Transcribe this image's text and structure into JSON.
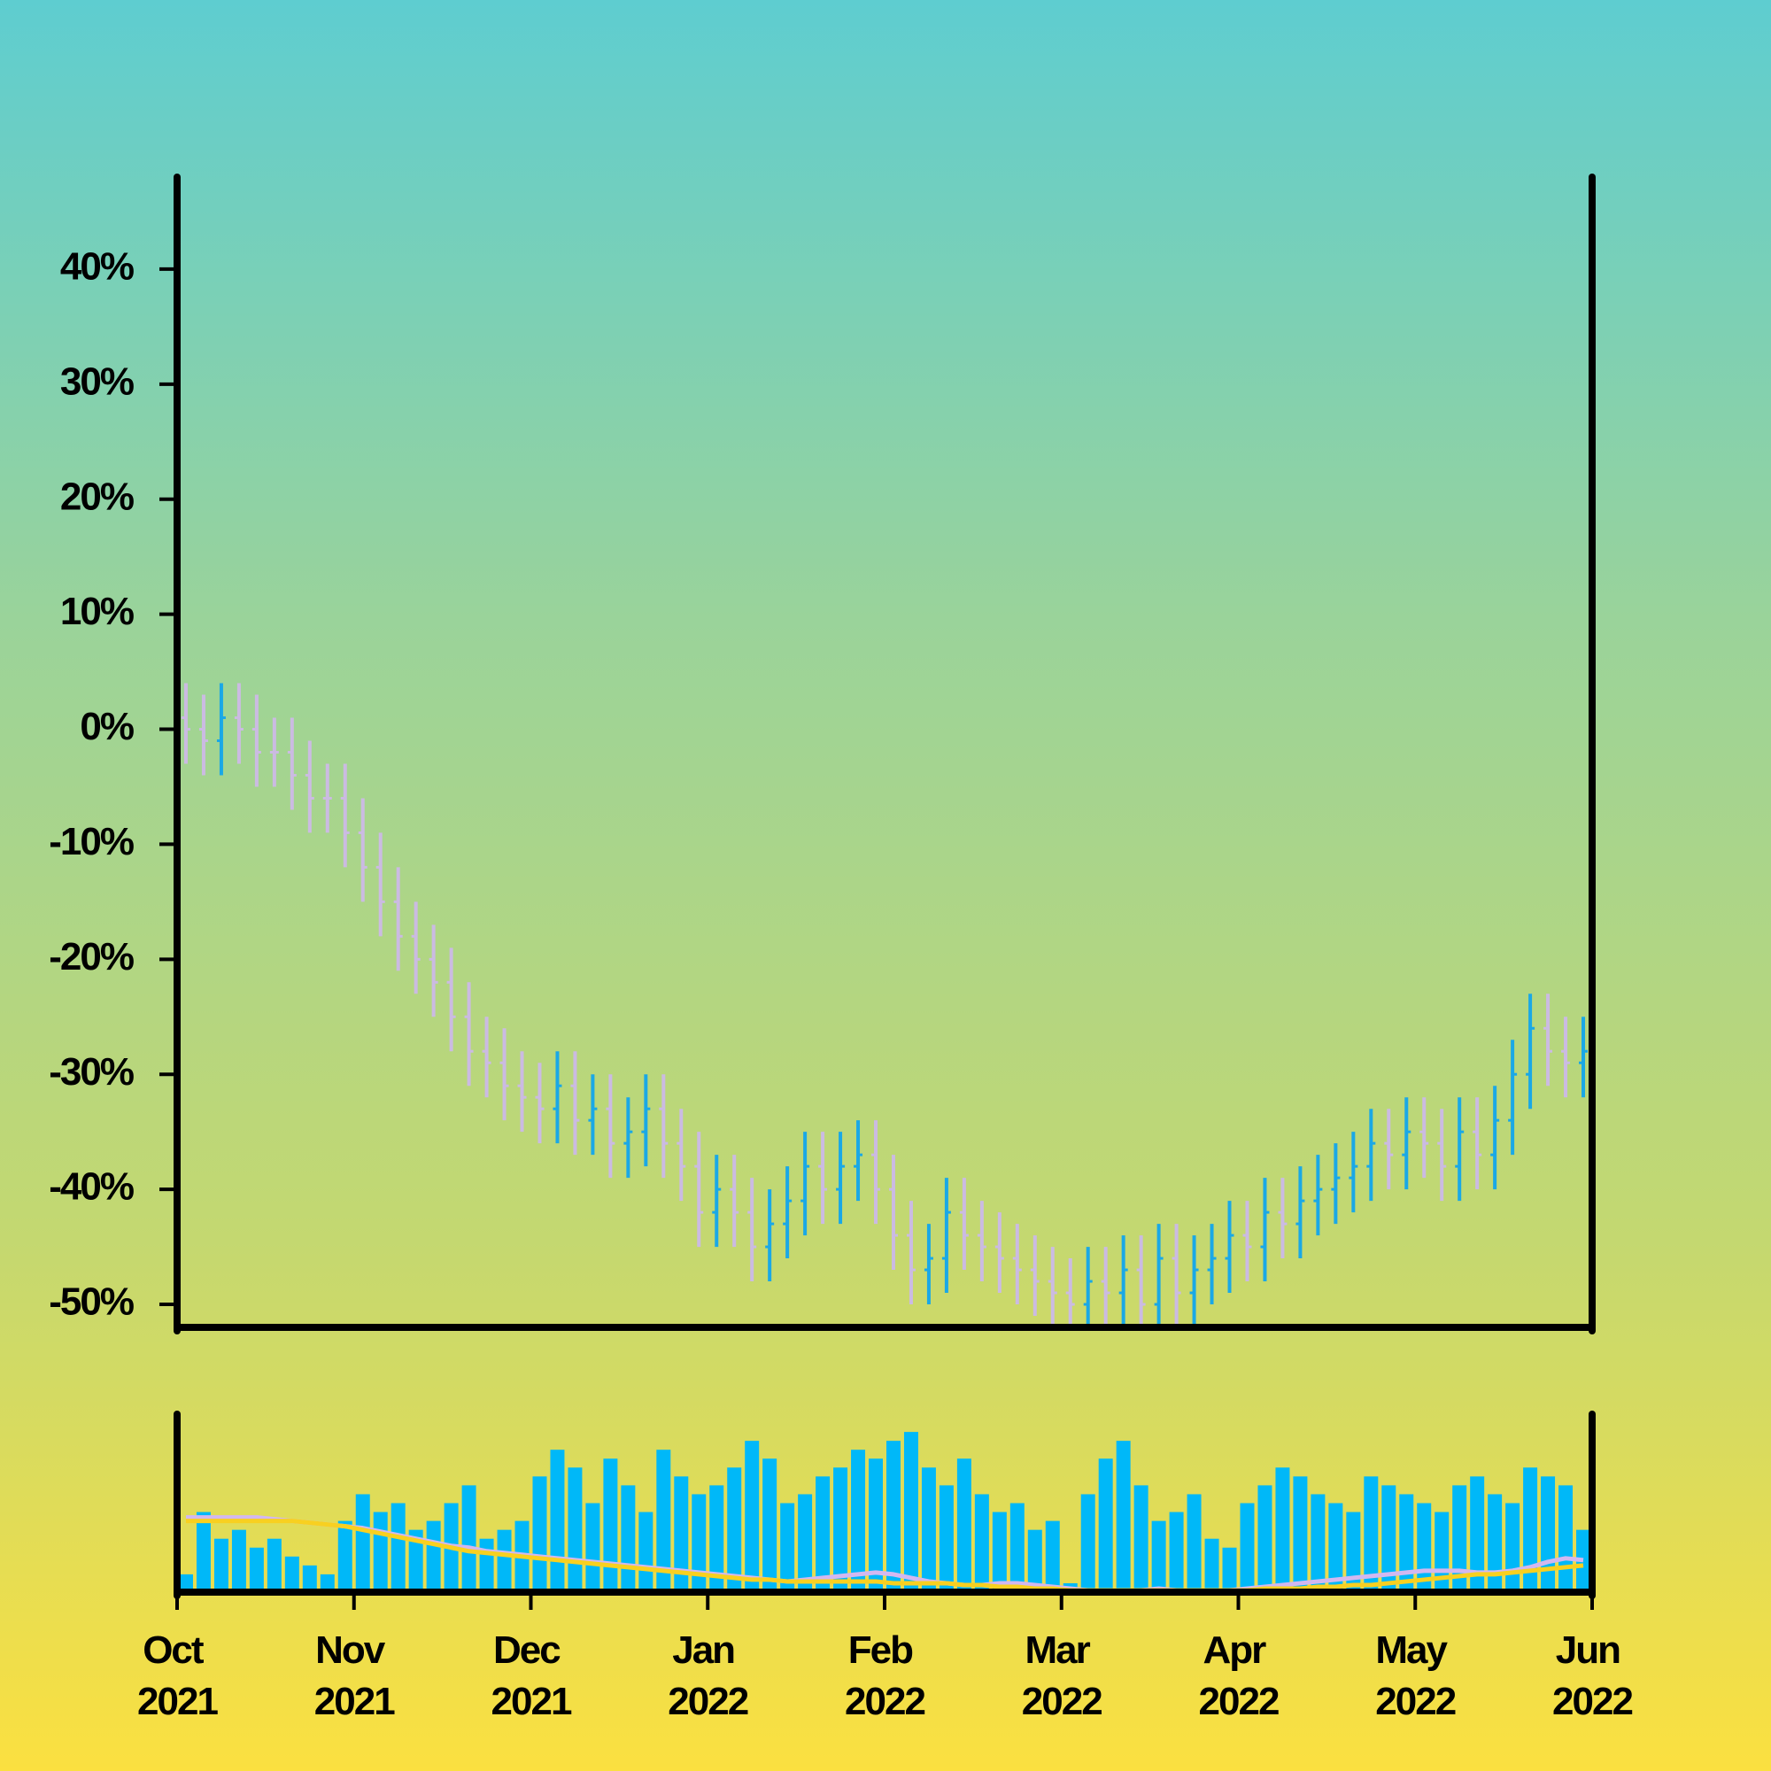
{
  "chart_data": {
    "type": "ohlc",
    "up_color": "#1aa8e6",
    "down_color": "#cbbbe2",
    "xlim": [
      0,
      8
    ],
    "xticks": [
      {
        "value": 0,
        "label": "Oct 2021"
      },
      {
        "value": 1,
        "label": "Nov 2021"
      },
      {
        "value": 2,
        "label": "Dec 2021"
      },
      {
        "value": 3,
        "label": "Jan 2022"
      },
      {
        "value": 4,
        "label": "Feb 2022"
      },
      {
        "value": 5,
        "label": "Mar 2022"
      },
      {
        "value": 6,
        "label": "Apr 2022"
      },
      {
        "value": 7,
        "label": "May 2022"
      },
      {
        "value": 8,
        "label": "Jun 2022"
      }
    ],
    "ylim": [
      -52,
      48
    ],
    "yticks": [
      {
        "value": -50,
        "label": "-50%"
      },
      {
        "value": -40,
        "label": "-40%"
      },
      {
        "value": -30,
        "label": "-30%"
      },
      {
        "value": -20,
        "label": "-20%"
      },
      {
        "value": -10,
        "label": "-10%"
      },
      {
        "value": 0,
        "label": "0%"
      },
      {
        "value": 10,
        "label": "10%"
      },
      {
        "value": 20,
        "label": "20%"
      },
      {
        "value": 30,
        "label": "30%"
      },
      {
        "value": 40,
        "label": "40%"
      }
    ],
    "x": [
      0.05,
      0.15,
      0.25,
      0.35,
      0.45,
      0.55,
      0.65,
      0.75,
      0.85,
      0.95,
      1.05,
      1.15,
      1.25,
      1.35,
      1.45,
      1.55,
      1.65,
      1.75,
      1.85,
      1.95,
      2.05,
      2.15,
      2.25,
      2.35,
      2.45,
      2.55,
      2.65,
      2.75,
      2.85,
      2.95,
      3.05,
      3.15,
      3.25,
      3.35,
      3.45,
      3.55,
      3.65,
      3.75,
      3.85,
      3.95,
      4.05,
      4.15,
      4.25,
      4.35,
      4.45,
      4.55,
      4.65,
      4.75,
      4.85,
      4.95,
      5.05,
      5.15,
      5.25,
      5.35,
      5.45,
      5.55,
      5.65,
      5.75,
      5.85,
      5.95,
      6.05,
      6.15,
      6.25,
      6.35,
      6.45,
      6.55,
      6.65,
      6.75,
      6.85,
      6.95,
      7.05,
      7.15,
      7.25,
      7.35,
      7.45,
      7.55,
      7.65,
      7.75,
      7.85,
      7.95
    ],
    "open": [
      1,
      0,
      -1,
      1,
      0,
      -2,
      -2,
      -4,
      -6,
      -6,
      -9,
      -12,
      -15,
      -18,
      -20,
      -22,
      -25,
      -28,
      -29,
      -31,
      -32,
      -33,
      -31,
      -34,
      -33,
      -36,
      -35,
      -33,
      -36,
      -38,
      -42,
      -40,
      -42,
      -45,
      -43,
      -41,
      -38,
      -40,
      -38,
      -37,
      -40,
      -44,
      -47,
      -46,
      -42,
      -44,
      -45,
      -46,
      -47,
      -48,
      -49,
      -50,
      -48,
      -49,
      -47,
      -50,
      -46,
      -49,
      -47,
      -46,
      -44,
      -45,
      -42,
      -43,
      -41,
      -40,
      -39,
      -38,
      -36,
      -37,
      -35,
      -36,
      -38,
      -35,
      -37,
      -34,
      -30,
      -26,
      -28,
      -29
    ],
    "high": [
      4,
      3,
      4,
      4,
      3,
      1,
      1,
      -1,
      -3,
      -3,
      -6,
      -9,
      -12,
      -15,
      -17,
      -19,
      -22,
      -25,
      -26,
      -28,
      -29,
      -28,
      -28,
      -30,
      -30,
      -32,
      -30,
      -30,
      -33,
      -35,
      -37,
      -37,
      -39,
      -40,
      -38,
      -35,
      -35,
      -35,
      -34,
      -34,
      -37,
      -41,
      -43,
      -39,
      -39,
      -41,
      -42,
      -43,
      -44,
      -45,
      -46,
      -45,
      -45,
      -44,
      -44,
      -43,
      -43,
      -44,
      -43,
      -41,
      -41,
      -39,
      -39,
      -38,
      -37,
      -36,
      -35,
      -33,
      -33,
      -32,
      -32,
      -33,
      -32,
      -32,
      -31,
      -27,
      -23,
      -23,
      -25,
      -25
    ],
    "low": [
      -3,
      -4,
      -4,
      -3,
      -5,
      -5,
      -7,
      -9,
      -9,
      -12,
      -15,
      -18,
      -21,
      -23,
      -25,
      -28,
      -31,
      -32,
      -34,
      -35,
      -36,
      -36,
      -37,
      -37,
      -39,
      -39,
      -38,
      -39,
      -41,
      -45,
      -45,
      -45,
      -48,
      -48,
      -46,
      -44,
      -43,
      -43,
      -41,
      -43,
      -47,
      -50,
      -50,
      -49,
      -47,
      -48,
      -49,
      -50,
      -51,
      -52,
      -53,
      -53,
      -52,
      -52,
      -53,
      -53,
      -52,
      -52,
      -50,
      -49,
      -48,
      -48,
      -46,
      -46,
      -44,
      -43,
      -42,
      -41,
      -40,
      -40,
      -39,
      -41,
      -41,
      -40,
      -40,
      -37,
      -33,
      -31,
      -32,
      -32
    ],
    "close": [
      0,
      -1,
      1,
      0,
      -2,
      -2,
      -4,
      -6,
      -6,
      -9,
      -12,
      -15,
      -18,
      -20,
      -22,
      -25,
      -28,
      -29,
      -31,
      -32,
      -33,
      -31,
      -34,
      -33,
      -36,
      -35,
      -33,
      -36,
      -38,
      -42,
      -40,
      -42,
      -45,
      -43,
      -41,
      -38,
      -40,
      -38,
      -37,
      -40,
      -44,
      -47,
      -46,
      -42,
      -44,
      -45,
      -46,
      -47,
      -48,
      -49,
      -50,
      -48,
      -49,
      -47,
      -50,
      -46,
      -49,
      -47,
      -46,
      -44,
      -45,
      -42,
      -43,
      -41,
      -40,
      -39,
      -38,
      -36,
      -37,
      -35,
      -36,
      -38,
      -35,
      -37,
      -34,
      -30,
      -26,
      -28,
      -29,
      -28
    ],
    "volume": {
      "color": "#00b8f8",
      "ylim": [
        0,
        100
      ],
      "values": [
        10,
        45,
        30,
        35,
        25,
        30,
        20,
        15,
        10,
        40,
        55,
        45,
        50,
        35,
        40,
        50,
        60,
        30,
        35,
        40,
        65,
        80,
        70,
        50,
        75,
        60,
        45,
        80,
        65,
        55,
        60,
        70,
        85,
        75,
        50,
        55,
        65,
        70,
        80,
        75,
        85,
        90,
        70,
        60,
        75,
        55,
        45,
        50,
        35,
        40,
        5,
        55,
        75,
        85,
        60,
        40,
        45,
        55,
        30,
        25,
        50,
        60,
        70,
        65,
        55,
        50,
        45,
        65,
        60,
        55,
        50,
        45,
        60,
        65,
        55,
        50,
        70,
        65,
        60,
        35
      ]
    },
    "moving_averages": [
      {
        "color": "#d2b8f0",
        "values": [
          42,
          42,
          42,
          42,
          42,
          41,
          40,
          39,
          38,
          37,
          36,
          34,
          32,
          30,
          28,
          26,
          25,
          23,
          22,
          21,
          20,
          19,
          18,
          17,
          16,
          15,
          14,
          13,
          12,
          11,
          10,
          9,
          8,
          7,
          6,
          7,
          8,
          9,
          10,
          11,
          10,
          8,
          6,
          5,
          4,
          4,
          5,
          5,
          4,
          3,
          2,
          1,
          0,
          0,
          1,
          2,
          1,
          0,
          0,
          1,
          2,
          3,
          4,
          5,
          6,
          7,
          8,
          9,
          10,
          11,
          12,
          12,
          12,
          11,
          11,
          12,
          14,
          17,
          19,
          18
        ]
      },
      {
        "color": "#f8d020",
        "values": [
          40,
          40,
          40,
          40,
          40,
          40,
          40,
          39,
          38,
          37,
          35,
          33,
          31,
          29,
          27,
          25,
          23,
          22,
          21,
          20,
          19,
          18,
          17,
          16,
          15,
          14,
          13,
          12,
          11,
          10,
          9,
          8,
          7,
          7,
          6,
          6,
          6,
          6,
          6,
          6,
          5,
          5,
          5,
          5,
          4,
          4,
          3,
          3,
          2,
          2,
          1,
          1,
          1,
          1,
          1,
          1,
          1,
          1,
          1,
          1,
          1,
          2,
          2,
          2,
          3,
          3,
          4,
          4,
          5,
          6,
          7,
          8,
          9,
          10,
          10,
          11,
          12,
          13,
          14,
          15
        ]
      }
    ]
  }
}
